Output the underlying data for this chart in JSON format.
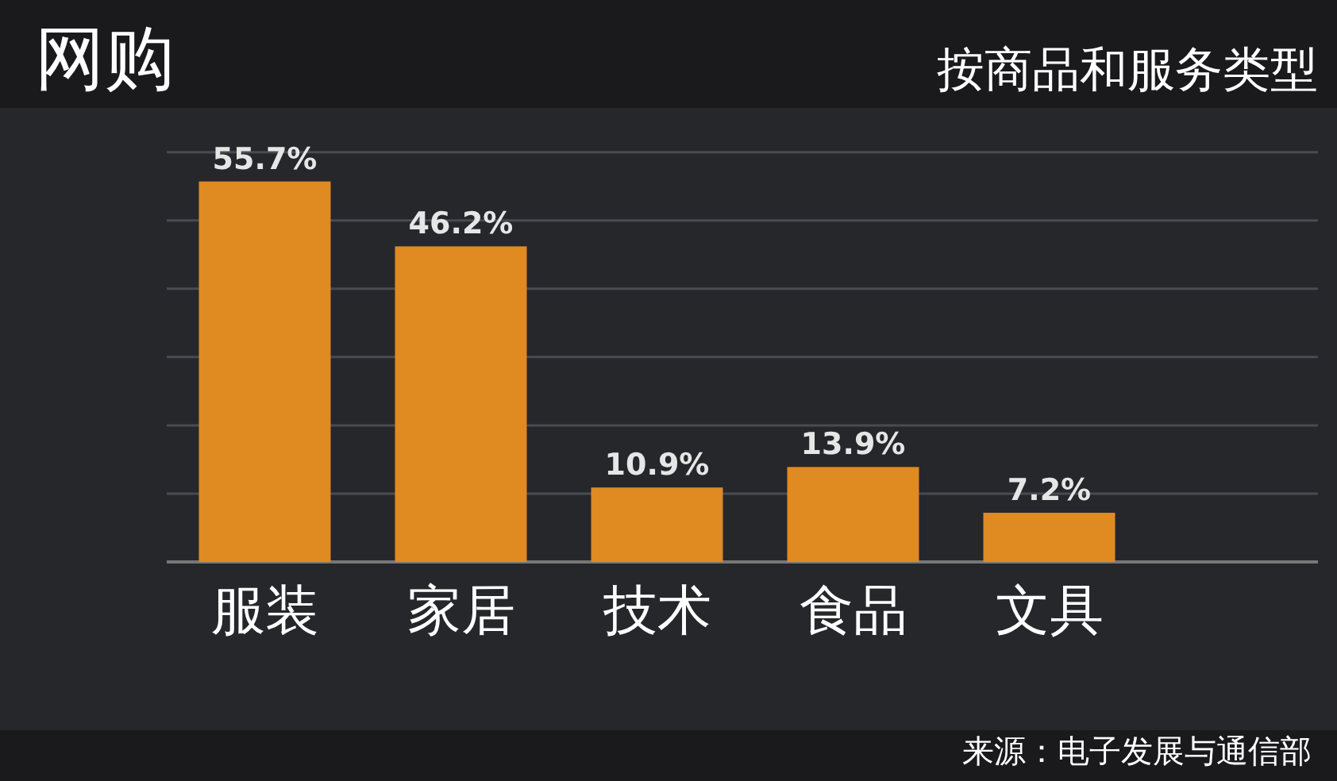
{
  "chart_data": {
    "type": "bar",
    "title": "网购",
    "subtitle": "按商品和服务类型",
    "categories": [
      "服装",
      "家居",
      "技术",
      "食品",
      "文具"
    ],
    "values": [
      55.7,
      46.2,
      10.9,
      13.9,
      7.2
    ],
    "value_labels": [
      "55.7%",
      "46.2%",
      "10.9%",
      "13.9%",
      "7.2%"
    ],
    "color": "#e08a22",
    "ylim": [
      0,
      66
    ],
    "yticks": [
      {
        "value": 0,
        "label": null
      },
      {
        "value": 10,
        "label": null
      },
      {
        "value": 20,
        "label": null
      },
      {
        "value": 30,
        "label": null
      },
      {
        "value": 40,
        "label": null
      },
      {
        "value": 50,
        "label": null
      },
      {
        "value": 60,
        "label": null
      }
    ],
    "tick_labels": "x",
    "grid": "y",
    "annotations": [
      "来源：电子发展与通信部"
    ]
  }
}
